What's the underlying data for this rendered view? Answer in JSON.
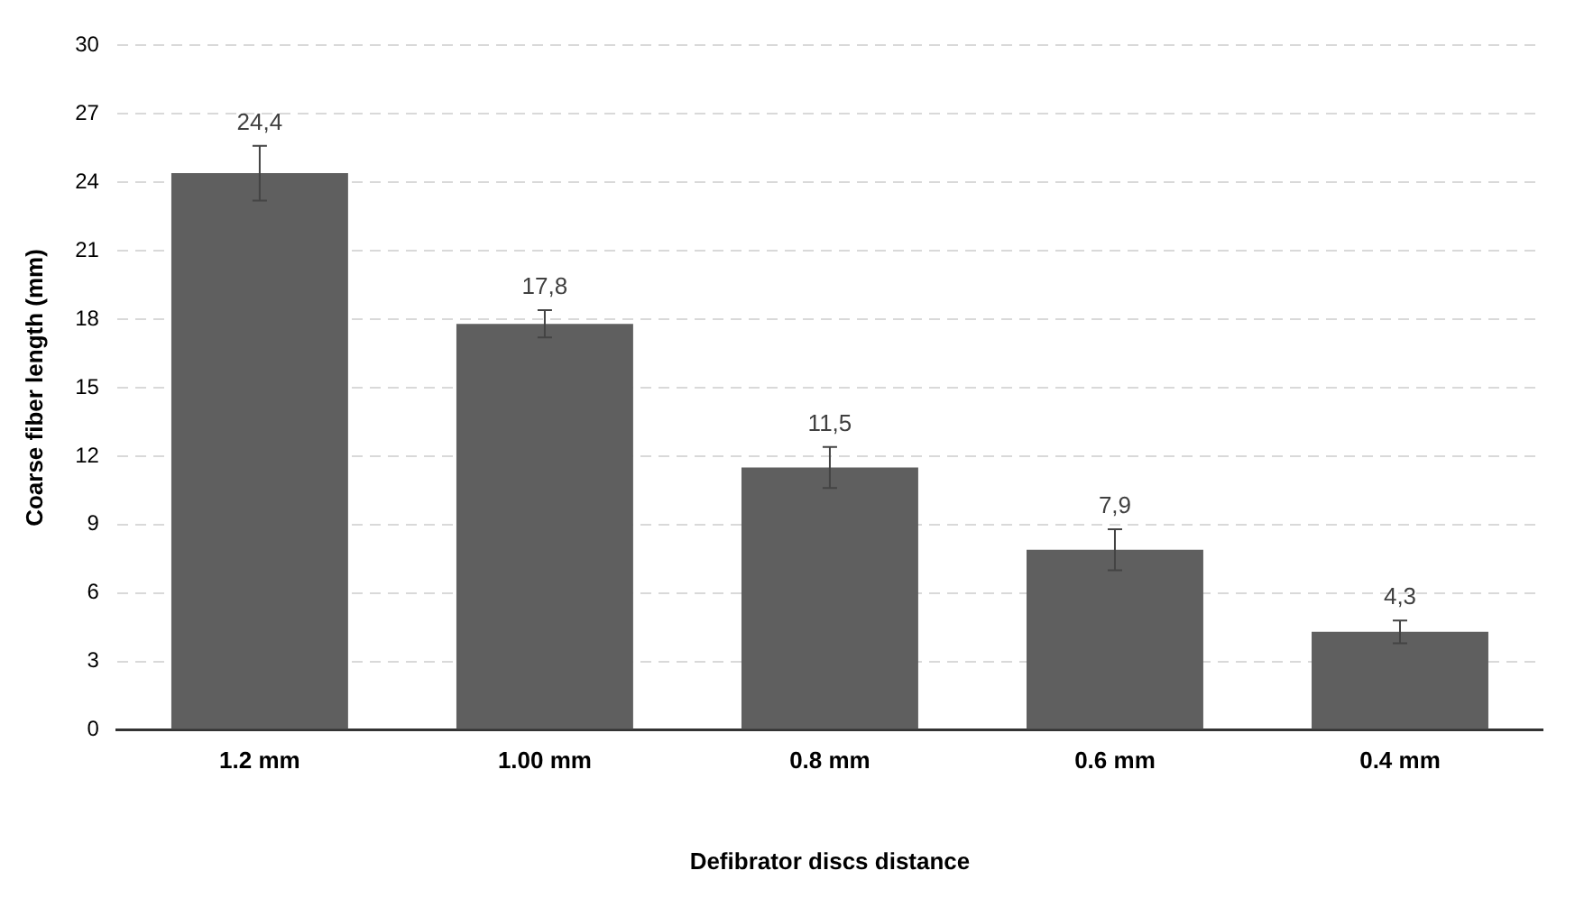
{
  "chart_data": {
    "type": "bar",
    "xlabel": "Defibrator discs distance",
    "ylabel": "Coarse fiber length (mm)",
    "categories": [
      "1.2 mm",
      "1.00 mm",
      "0.8 mm",
      "0.6 mm",
      "0.4 mm"
    ],
    "values": [
      24.4,
      17.8,
      11.5,
      7.9,
      4.3
    ],
    "value_labels": [
      "24,4",
      "17,8",
      "11,5",
      "7,9",
      "4,3"
    ],
    "errors": [
      1.2,
      0.6,
      0.9,
      0.9,
      0.5
    ],
    "color": "#5f5f5f",
    "ylim": [
      0,
      30
    ],
    "yticks": [
      0,
      3,
      6,
      9,
      12,
      15,
      18,
      21,
      24,
      27,
      30
    ],
    "grid": "y",
    "legend": false
  }
}
